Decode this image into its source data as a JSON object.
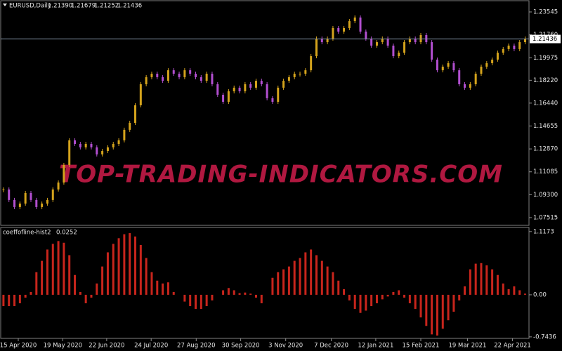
{
  "chart_data": [
    {
      "type": "candlestick",
      "symbol": "EURUSD,Daily",
      "ohlc": [
        {
          "value": 1.2139,
          "label": "1.21390"
        },
        {
          "value": 1.21679,
          "label": "1.21679"
        },
        {
          "value": 1.21252,
          "label": "1.21252"
        },
        {
          "value": 1.21436,
          "label": "1.21436"
        }
      ],
      "last_price": {
        "value": 1.21436,
        "label": "1.21436"
      },
      "watermark": "TOP-TRADING-INDICATORS.COM",
      "up_color": "#d4a31c",
      "down_color": "#b24fd0",
      "line_color": "#8a9bb0",
      "values": [
        1.0971,
        1.0889,
        1.0834,
        1.0861,
        1.0943,
        1.0889,
        1.0834,
        1.0861,
        1.0889,
        1.0971,
        1.1025,
        1.1162,
        1.1354,
        1.1326,
        1.1299,
        1.1326,
        1.1299,
        1.1244,
        1.1271,
        1.1299,
        1.1326,
        1.1354,
        1.1436,
        1.149,
        1.1627,
        1.1791,
        1.1846,
        1.1873,
        1.1846,
        1.1818,
        1.19,
        1.1873,
        1.1846,
        1.19,
        1.1873,
        1.1846,
        1.1818,
        1.1873,
        1.1791,
        1.1709,
        1.1654,
        1.1736,
        1.1764,
        1.1736,
        1.1791,
        1.1764,
        1.1818,
        1.1791,
        1.1682,
        1.1654,
        1.1764,
        1.1818,
        1.1846,
        1.1873,
        1.1873,
        1.19,
        1.201,
        1.2147,
        1.2119,
        1.2147,
        1.2229,
        1.2201,
        1.2229,
        1.2283,
        1.2311,
        1.2201,
        1.2147,
        1.2092,
        1.2119,
        1.2147,
        1.2092,
        1.201,
        1.2037,
        1.2119,
        1.2147,
        1.2119,
        1.2174,
        1.2119,
        1.1983,
        1.19,
        1.1928,
        1.1955,
        1.19,
        1.1791,
        1.1764,
        1.1791,
        1.1873,
        1.1928,
        1.1955,
        1.1983,
        1.2037,
        1.2065,
        1.2092,
        1.2065,
        1.2119,
        1.2147
      ],
      "xlim": [
        -0.5,
        95.7
      ],
      "ylim": [
        1.06968,
        1.24366
      ],
      "yticks": [
        1.23545,
        {
          "value": 1.2176,
          "label": "1.21760"
        },
        1.19975,
        {
          "value": 1.1822,
          "label": "1.18220"
        },
        {
          "value": 1.1644,
          "label": "1.16440"
        },
        1.14655,
        {
          "value": 1.1287,
          "label": "1.12870"
        },
        1.11085,
        {
          "value": 1.093,
          "label": "1.09300"
        },
        1.07515
      ],
      "grid": false
    },
    {
      "type": "bar",
      "indicator": "coeffofline-hist2",
      "indicator_value": 0.0252,
      "color": "#c8251c",
      "values": [
        -0.2,
        -0.2,
        -0.2,
        -0.15,
        -0.05,
        0.05,
        0.4,
        0.6,
        0.8,
        0.9,
        0.95,
        0.92,
        0.7,
        0.35,
        0.05,
        -0.15,
        -0.05,
        0.2,
        0.5,
        0.75,
        0.9,
        1.0,
        1.07,
        1.09,
        1.03,
        0.88,
        0.65,
        0.4,
        0.25,
        0.2,
        0.22,
        0.05,
        0,
        -0.12,
        -0.2,
        -0.25,
        -0.25,
        -0.2,
        -0.1,
        0,
        0.08,
        0.12,
        0.08,
        0.03,
        0.04,
        0.02,
        -0.05,
        -0.15,
        0,
        0.3,
        0.4,
        0.45,
        0.5,
        0.6,
        0.65,
        0.75,
        0.8,
        0.7,
        0.6,
        0.5,
        0.4,
        0.25,
        0.1,
        -0.1,
        -0.25,
        -0.32,
        -0.28,
        -0.2,
        -0.15,
        -0.08,
        -0.03,
        0.05,
        0.08,
        -0.05,
        -0.15,
        -0.25,
        -0.4,
        -0.55,
        -0.7,
        -0.72,
        -0.6,
        -0.45,
        -0.3,
        -0.1,
        0.15,
        0.45,
        0.55,
        0.56,
        0.52,
        0.45,
        0.35,
        0.2,
        0.1,
        0.15,
        0.08,
        0.02
      ],
      "xlim": [
        -0.5,
        95.7
      ],
      "ylim": [
        -0.77,
        1.19
      ],
      "yticks": [
        1.1173,
        {
          "value": 0,
          "label": "0.00"
        },
        -0.7436
      ],
      "xticks": [
        {
          "value": 2.7,
          "label": "15 Apr 2020"
        },
        {
          "value": 10.8,
          "label": "19 May 2020"
        },
        {
          "value": 18.8,
          "label": "22 Jun 2020"
        },
        {
          "value": 26.9,
          "label": "24 Jul 2020"
        },
        {
          "value": 35.1,
          "label": "27 Aug 2020"
        },
        {
          "value": 43.2,
          "label": "30 Sep 2020"
        },
        {
          "value": 51.4,
          "label": "3 Nov 2020"
        },
        {
          "value": 59.7,
          "label": "7 Dec 2020"
        },
        {
          "value": 67.8,
          "label": "12 Jan 2021"
        },
        {
          "value": 76,
          "label": "15 Feb 2021"
        },
        {
          "value": 84.5,
          "label": "19 Mar 2021"
        },
        {
          "value": 92.7,
          "label": "22 Apr 2021"
        }
      ],
      "grid": false
    }
  ]
}
